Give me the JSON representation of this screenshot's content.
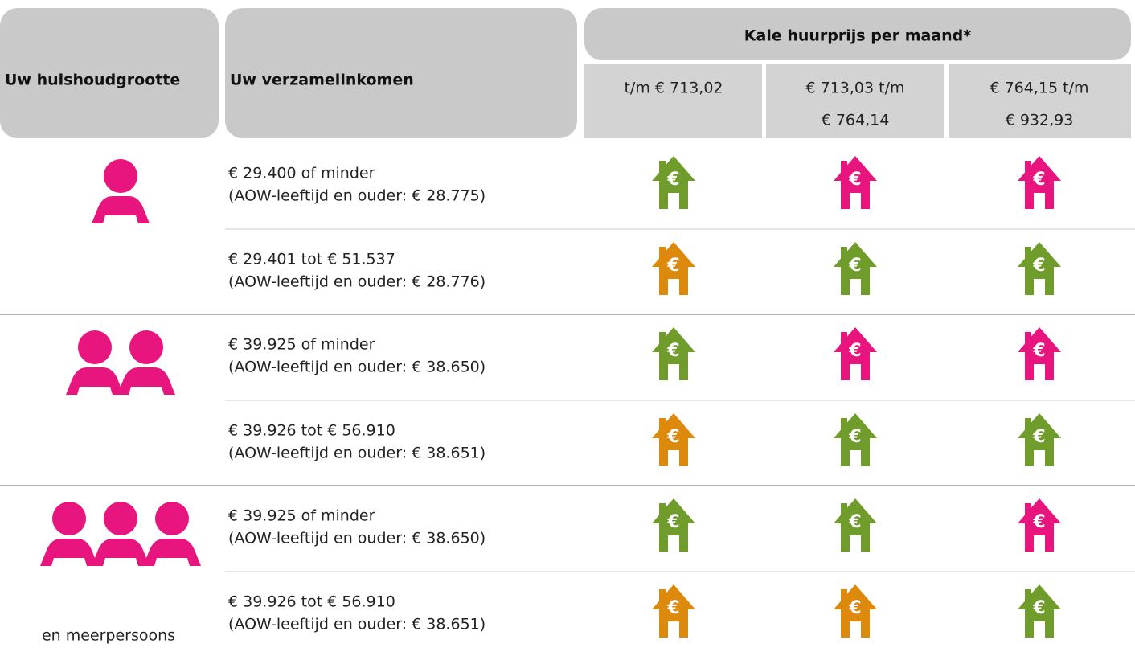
{
  "header": {
    "household": "Uw huishoudgrootte",
    "income": "Uw verzamelinkomen",
    "rent": "Kale huurprijs per maand*",
    "rent_bands": [
      [
        "t/m € 713,02"
      ],
      [
        "€ 713,03 t/m",
        "€ 764,14"
      ],
      [
        "€ 764,15 t/m",
        "€ 932,93"
      ]
    ]
  },
  "house_symbol": "€",
  "groups": [
    {
      "persons": 1,
      "rows": [
        {
          "income": [
            "€ 29.400 of minder",
            "(AOW-leeftijd en ouder: € 28.775)"
          ],
          "houses": [
            "#6f9c2b",
            "#e8157f",
            "#e8157f"
          ]
        },
        {
          "income": [
            "€ 29.401 tot € 51.537",
            "(AOW-leeftijd en ouder: € 28.776)"
          ],
          "houses": [
            "#dd8a0c",
            "#6f9c2b",
            "#6f9c2b"
          ]
        }
      ]
    },
    {
      "persons": 2,
      "rows": [
        {
          "income": [
            "€ 39.925 of minder",
            "(AOW-leeftijd en ouder: € 38.650)"
          ],
          "houses": [
            "#6f9c2b",
            "#e8157f",
            "#e8157f"
          ]
        },
        {
          "income": [
            "€ 39.926  tot € 56.910",
            "(AOW-leeftijd en ouder: € 38.651)"
          ],
          "houses": [
            "#dd8a0c",
            "#6f9c2b",
            "#6f9c2b"
          ]
        }
      ]
    },
    {
      "persons": 3,
      "label": "en meerpersoons",
      "rows": [
        {
          "income": [
            "€ 39.925 of minder",
            "(AOW-leeftijd en ouder: € 38.650)"
          ],
          "houses": [
            "#6f9c2b",
            "#6f9c2b",
            "#e8157f"
          ]
        },
        {
          "income": [
            "€ 39.926 tot € 56.910",
            "(AOW-leeftijd en ouder: € 38.651)"
          ],
          "houses": [
            "#dd8a0c",
            "#dd8a0c",
            "#6f9c2b"
          ]
        }
      ]
    }
  ]
}
